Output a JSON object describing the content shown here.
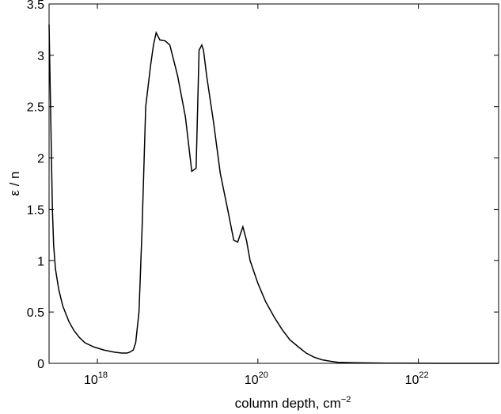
{
  "chart_data": {
    "type": "line",
    "title": "",
    "xlabel": "column depth, cm",
    "xlabel_superscript": "−2",
    "ylabel": "ε / n",
    "x_scale": "log",
    "xlim": [
      2.5e+17,
      1e+23
    ],
    "ylim": [
      0,
      3.5
    ],
    "grid": false,
    "legend": "none",
    "line_color": "#000000",
    "x_ticks": [
      {
        "value": 1e+18,
        "base": "10",
        "exponent": "18"
      },
      {
        "value": 1e+20,
        "base": "10",
        "exponent": "20"
      },
      {
        "value": 1e+22,
        "base": "10",
        "exponent": "22"
      }
    ],
    "y_ticks": [
      {
        "value": 0,
        "label": "0"
      },
      {
        "value": 0.5,
        "label": "0.5"
      },
      {
        "value": 1,
        "label": "1"
      },
      {
        "value": 1.5,
        "label": "1.5"
      },
      {
        "value": 2,
        "label": "2"
      },
      {
        "value": 2.5,
        "label": "2.5"
      },
      {
        "value": 3,
        "label": "3"
      },
      {
        "value": 3.5,
        "label": "3.5"
      }
    ],
    "series": [
      {
        "x": [
          2.5e+17,
          2.75e+17,
          2.85e+17,
          3e+17,
          3.3e+17,
          3.7e+17,
          4.4e+17,
          5.1e+17,
          6e+17,
          7e+17,
          9e+17,
          1.2e+18,
          1.6e+18,
          2e+18,
          2.35e+18,
          2.55e+18,
          2.8e+18,
          3e+18,
          3.3e+18,
          3.6e+18,
          4e+18,
          4.6e+18,
          5e+18,
          5.4e+18,
          6e+18,
          7e+18,
          8e+18,
          1e+19,
          1.25e+19,
          1.5e+19,
          1.7e+19,
          1.85e+19,
          2e+19,
          2.1e+19,
          2.3e+19,
          2.8e+19,
          3.4e+19,
          4.2e+19,
          5e+19,
          5.6e+19,
          6e+19,
          6.5e+19,
          7.2e+19,
          8e+19,
          1e+20,
          1.25e+20,
          1.6e+20,
          2e+20,
          2.5e+20,
          3.2e+20,
          4e+20,
          5e+20,
          6.3e+20,
          8e+20,
          1e+21,
          1.6e+21,
          2.5e+21,
          4e+21,
          1e+22,
          2e+22,
          1e+23
        ],
        "y": [
          3.3,
          1.5,
          1.15,
          0.92,
          0.72,
          0.56,
          0.41,
          0.32,
          0.25,
          0.2,
          0.16,
          0.13,
          0.11,
          0.1,
          0.1,
          0.11,
          0.13,
          0.2,
          0.5,
          1.3,
          2.5,
          2.9,
          3.1,
          3.22,
          3.15,
          3.14,
          3.1,
          2.8,
          2.4,
          1.87,
          1.9,
          3.05,
          3.1,
          3.05,
          2.8,
          2.35,
          1.85,
          1.5,
          1.2,
          1.18,
          1.25,
          1.33,
          1.2,
          1.0,
          0.78,
          0.6,
          0.45,
          0.33,
          0.23,
          0.16,
          0.1,
          0.06,
          0.035,
          0.02,
          0.01,
          0.006,
          0.004,
          0.002,
          0.001,
          0.0005,
          0.0
        ]
      }
    ]
  }
}
